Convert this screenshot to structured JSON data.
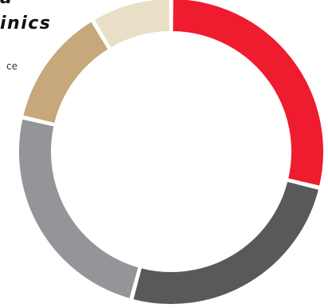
{
  "title_fragment": {
    "line1": "a",
    "line2": "inics"
  },
  "side_fragment": "ce",
  "chart_data": {
    "type": "pie",
    "style": "donut",
    "start_angle_deg": 0,
    "direction": "clockwise",
    "categories": [
      "red",
      "dark gray",
      "gray",
      "tan",
      "cream"
    ],
    "values": [
      28.8,
      25.4,
      24.4,
      12.8,
      8.6
    ],
    "colors": [
      "#ee1c2e",
      "#58595b",
      "#939598",
      "#c6a87a",
      "#e8dfc6"
    ]
  }
}
